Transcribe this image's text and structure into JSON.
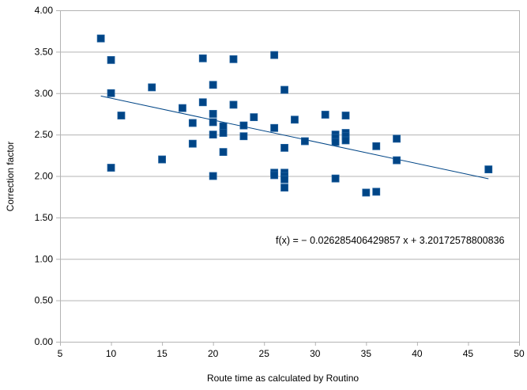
{
  "chart_data": {
    "type": "scatter",
    "title": "",
    "xlabel": "Route time as calculated by Routino",
    "ylabel": "Correction factor",
    "xlim": [
      5,
      50
    ],
    "ylim": [
      0,
      4
    ],
    "xticks": [
      5,
      10,
      15,
      20,
      25,
      30,
      35,
      40,
      45,
      50
    ],
    "yticks": [
      "0.00",
      "0.50",
      "1.00",
      "1.50",
      "2.00",
      "2.50",
      "3.00",
      "3.50",
      "4.00"
    ],
    "grid": "horizontal",
    "legend": "none",
    "marker_color": "#004586",
    "trendline_color": "#004586",
    "series": [
      {
        "points": [
          [
            9,
            3.66
          ],
          [
            10,
            3.4
          ],
          [
            10,
            3.0
          ],
          [
            10,
            2.1
          ],
          [
            11,
            2.73
          ],
          [
            14,
            3.07
          ],
          [
            15,
            2.2
          ],
          [
            17,
            2.82
          ],
          [
            18,
            2.64
          ],
          [
            18,
            2.39
          ],
          [
            19,
            3.42
          ],
          [
            19,
            2.89
          ],
          [
            20,
            3.1
          ],
          [
            20,
            2.75
          ],
          [
            20,
            2.65
          ],
          [
            20,
            2.5
          ],
          [
            20,
            2.0
          ],
          [
            21,
            2.6
          ],
          [
            21,
            2.52
          ],
          [
            21,
            2.29
          ],
          [
            22,
            3.41
          ],
          [
            22,
            2.86
          ],
          [
            23,
            2.61
          ],
          [
            23,
            2.48
          ],
          [
            24,
            2.71
          ],
          [
            26,
            3.46
          ],
          [
            26,
            2.58
          ],
          [
            26,
            2.04
          ],
          [
            26,
            2.01
          ],
          [
            27,
            3.04
          ],
          [
            27,
            2.34
          ],
          [
            27,
            2.04
          ],
          [
            27,
            2.0
          ],
          [
            27,
            1.96
          ],
          [
            27,
            1.86
          ],
          [
            28,
            2.68
          ],
          [
            29,
            2.42
          ],
          [
            31,
            2.74
          ],
          [
            32,
            2.5
          ],
          [
            32,
            2.46
          ],
          [
            32,
            2.41
          ],
          [
            32,
            1.97
          ],
          [
            33,
            2.73
          ],
          [
            33,
            2.52
          ],
          [
            33,
            2.48
          ],
          [
            33,
            2.43
          ],
          [
            35,
            1.8
          ],
          [
            36,
            2.36
          ],
          [
            36,
            1.81
          ],
          [
            38,
            2.45
          ],
          [
            38,
            2.19
          ],
          [
            47,
            2.08
          ]
        ]
      }
    ],
    "trendline": {
      "x_range": [
        9,
        47
      ],
      "slope": -0.02628540642985,
      "intercept": 3.20172578800836
    },
    "annotation": "f(x) = − 0.026285406429857 x + 3.20172578800836"
  }
}
